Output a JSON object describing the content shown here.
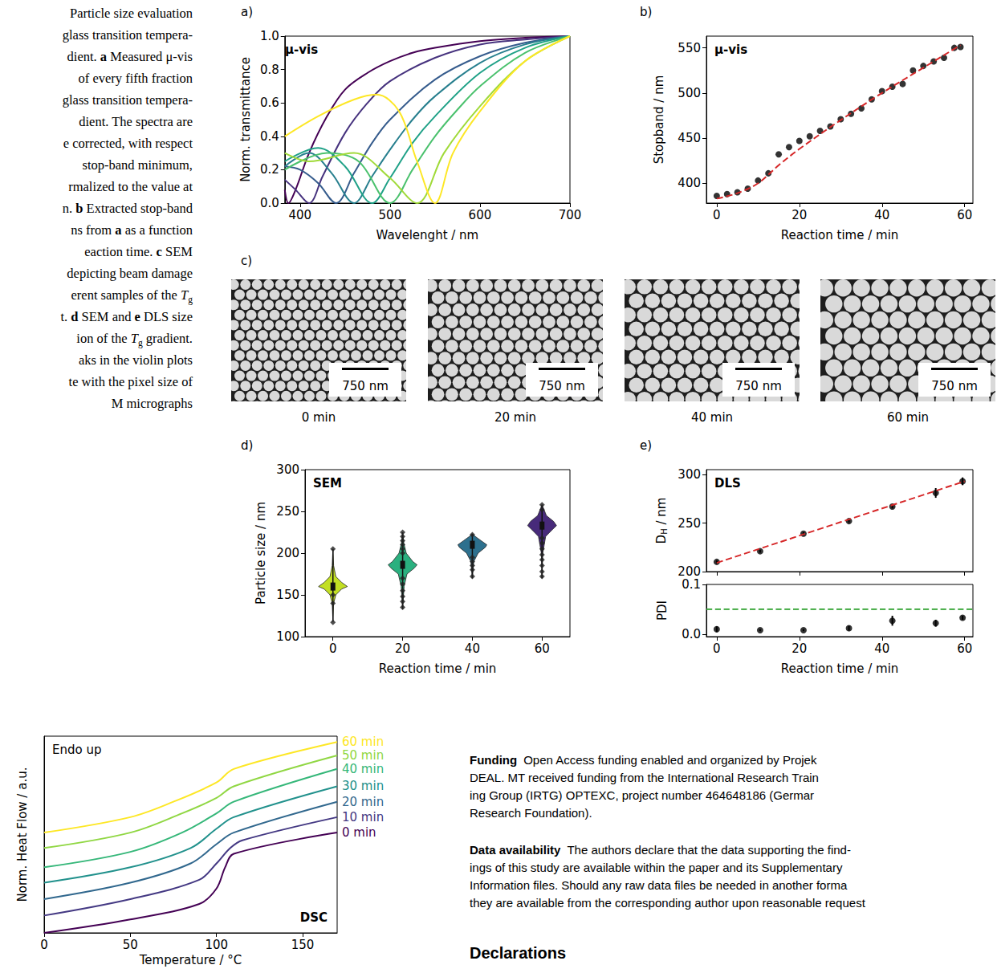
{
  "caption": {
    "lines": [
      [
        "Particle size evaluation"
      ],
      [
        "glass transition tempera-"
      ],
      [
        "dient. ",
        {
          "b": "a"
        },
        " Measured μ-vis"
      ],
      [
        "of every fifth fraction"
      ],
      [
        "glass transition tempera-"
      ],
      [
        "dient. The spectra are"
      ],
      [
        "e corrected, with respect"
      ],
      [
        "stop-band minimum,"
      ],
      [
        "rmalized to the value at"
      ],
      [
        "n. ",
        {
          "b": "b"
        },
        " Extracted stop-band"
      ],
      [
        "ns from ",
        {
          "b": "a"
        },
        " as a function"
      ],
      [
        "eaction time. ",
        {
          "b": "c"
        },
        " SEM"
      ],
      [
        "depicting beam damage"
      ],
      [
        "erent samples of the ",
        {
          "i": "T"
        },
        {
          "sub": "g"
        }
      ],
      [
        "t. ",
        {
          "b": "d"
        },
        " SEM and ",
        {
          "b": "e"
        },
        " DLS size"
      ],
      [
        "ion of the ",
        {
          "i": "T"
        },
        {
          "sub": "g"
        },
        " gradient."
      ],
      [
        "aks in the violin plots"
      ],
      [
        "te with the pixel size of"
      ],
      [
        "M micrographs"
      ]
    ]
  },
  "chart_data": [
    {
      "panel": "a)",
      "type": "line",
      "annotations": [
        "μ-vis"
      ],
      "xlabel": "Wavelenght / nm",
      "ylabel": "Norm. transmittance",
      "xlim": [
        383,
        700
      ],
      "xticks": [
        400,
        500,
        600,
        700
      ],
      "ylim": [
        0,
        1
      ],
      "yticks": [
        {
          "value": 0,
          "label": "0.0"
        },
        {
          "value": 0.2,
          "label": "0.2"
        },
        {
          "value": 0.4,
          "label": "0.4"
        },
        {
          "value": 0.6,
          "label": "0.6"
        },
        {
          "value": 0.8,
          "label": "0.8"
        },
        {
          "value": 1,
          "label": "1.0"
        }
      ],
      "grid": false,
      "series": [
        {
          "color": "#440154",
          "line_style": "solid",
          "x": [
            383,
            387,
            395,
            410,
            430,
            450,
            475,
            500,
            525,
            550,
            600,
            650,
            700
          ],
          "values": [
            0.08,
            0.0,
            0.08,
            0.3,
            0.52,
            0.68,
            0.78,
            0.85,
            0.9,
            0.93,
            0.97,
            0.99,
            1.0
          ]
        },
        {
          "color": "#46327e",
          "line_style": "solid",
          "x": [
            383,
            395,
            410,
            425,
            450,
            475,
            500,
            550,
            600,
            650,
            700
          ],
          "values": [
            0.14,
            0.08,
            0.0,
            0.16,
            0.42,
            0.6,
            0.73,
            0.87,
            0.95,
            0.98,
            1.0
          ]
        },
        {
          "color": "#365c8d",
          "line_style": "solid",
          "x": [
            383,
            400,
            420,
            440,
            460,
            480,
            500,
            550,
            600,
            650,
            700
          ],
          "values": [
            0.22,
            0.2,
            0.12,
            0.0,
            0.18,
            0.36,
            0.5,
            0.74,
            0.88,
            0.96,
            1.0
          ]
        },
        {
          "color": "#277f8e",
          "line_style": "solid",
          "x": [
            383,
            410,
            435,
            460,
            480,
            500,
            525,
            550,
            600,
            650,
            700
          ],
          "values": [
            0.22,
            0.3,
            0.18,
            0.0,
            0.16,
            0.32,
            0.5,
            0.64,
            0.84,
            0.95,
            1.0
          ]
        },
        {
          "color": "#1fa187",
          "line_style": "solid",
          "x": [
            383,
            420,
            450,
            480,
            500,
            525,
            550,
            600,
            650,
            700
          ],
          "values": [
            0.25,
            0.33,
            0.22,
            0.0,
            0.15,
            0.36,
            0.52,
            0.78,
            0.93,
            1.0
          ]
        },
        {
          "color": "#4ac16d",
          "line_style": "solid",
          "x": [
            383,
            430,
            465,
            500,
            525,
            550,
            575,
            600,
            650,
            700
          ],
          "values": [
            0.2,
            0.3,
            0.25,
            0.0,
            0.2,
            0.4,
            0.56,
            0.7,
            0.9,
            1.0
          ]
        },
        {
          "color": "#a0da39",
          "line_style": "solid",
          "x": [
            383,
            410,
            460,
            500,
            530,
            560,
            600,
            650,
            700
          ],
          "values": [
            0.3,
            0.25,
            0.3,
            0.15,
            0.0,
            0.3,
            0.58,
            0.85,
            1.0
          ]
        },
        {
          "color": "#fde725",
          "line_style": "solid",
          "x": [
            383,
            420,
            460,
            485,
            510,
            530,
            550,
            570,
            600,
            650,
            700
          ],
          "values": [
            0.4,
            0.52,
            0.62,
            0.65,
            0.55,
            0.25,
            0.0,
            0.3,
            0.55,
            0.85,
            1.0
          ]
        }
      ]
    },
    {
      "panel": "b)",
      "type": "scatter",
      "annotations": [
        "μ-vis"
      ],
      "xlabel": "Reaction time / min",
      "ylabel": "Stopband / nm",
      "xlim": [
        -2.5,
        62
      ],
      "xticks": [
        0,
        20,
        40,
        60
      ],
      "ylim": [
        378,
        563
      ],
      "yticks": [
        400,
        450,
        500,
        550
      ],
      "grid": false,
      "series": [
        {
          "type": "scatter",
          "marker": "circle",
          "color": "#000000",
          "x": [
            0,
            2.5,
            5,
            7.5,
            10,
            12.5,
            15,
            17.5,
            20,
            22.5,
            25,
            27.5,
            30,
            32.5,
            35,
            37.5,
            40,
            42.5,
            45,
            47.5,
            50,
            52.5,
            55,
            57.5,
            59
          ],
          "values": [
            386,
            388,
            390,
            394,
            403,
            411,
            432,
            440,
            447,
            452,
            458,
            463,
            471,
            477,
            483,
            493,
            502,
            507,
            510,
            525,
            530,
            535,
            539,
            550,
            551
          ]
        },
        {
          "type": "line",
          "line_style": "dashed",
          "color": "#d62728",
          "x": [
            0,
            5,
            10,
            15,
            20,
            30,
            40,
            50,
            59
          ],
          "values": [
            383,
            389,
            400,
            420,
            438,
            470,
            500,
            528,
            553
          ]
        }
      ]
    },
    {
      "panel": "d)",
      "type": "violin",
      "annotations": [
        "SEM"
      ],
      "xlabel": "Reaction time / min",
      "ylabel": "Particle size / nm",
      "xlim": [
        -8,
        68
      ],
      "xticks": [
        0,
        20,
        40,
        60
      ],
      "ylim": [
        100,
        300
      ],
      "yticks": [
        100,
        150,
        200,
        250,
        300
      ],
      "grid": false,
      "marker": "diamond",
      "violins": [
        {
          "x": 0,
          "color": "#c2df23",
          "median": 160,
          "sizes": [
            118,
            140,
            150,
            157,
            160,
            165,
            172,
            185,
            205
          ],
          "widths": [
            0,
            0.05,
            0.2,
            0.6,
            1.0,
            0.6,
            0.2,
            0.05,
            0
          ],
          "outliers": [
            205,
            117,
            140,
            150
          ]
        },
        {
          "x": 20,
          "color": "#2ab07f",
          "median": 186,
          "sizes": [
            133,
            160,
            175,
            182,
            186,
            190,
            200,
            212,
            225
          ],
          "widths": [
            0,
            0.1,
            0.3,
            0.8,
            1.0,
            0.7,
            0.25,
            0.08,
            0
          ],
          "outliers": [
            225,
            220,
            215,
            210,
            205,
            200,
            170,
            163,
            155,
            148,
            142,
            135
          ]
        },
        {
          "x": 40,
          "color": "#2d708e",
          "median": 210,
          "sizes": [
            170,
            190,
            200,
            207,
            210,
            215,
            220,
            223
          ],
          "widths": [
            0,
            0.1,
            0.4,
            0.9,
            1.0,
            0.6,
            0.2,
            0
          ],
          "outliers": [
            222,
            195,
            190,
            185,
            180,
            172
          ]
        },
        {
          "x": 60,
          "color": "#472a7a",
          "median": 233,
          "sizes": [
            170,
            200,
            220,
            228,
            233,
            238,
            245,
            258
          ],
          "widths": [
            0,
            0.05,
            0.25,
            0.7,
            1.0,
            0.8,
            0.3,
            0
          ],
          "outliers": [
            258,
            252,
            218,
            212,
            205,
            198,
            192,
            185,
            178,
            172
          ]
        }
      ]
    },
    {
      "panel": "e)",
      "type": "scatter",
      "annotations": [
        "DLS"
      ],
      "ylabel": {
        "main": "D",
        "sub": "H",
        "rest": " / nm"
      },
      "xlim": [
        -2.5,
        62
      ],
      "xticks": [
        0,
        20,
        40,
        60
      ],
      "ylim": [
        200,
        305
      ],
      "yticks": [
        200,
        250,
        300
      ],
      "tick_labels": "y",
      "grid": false,
      "series": [
        {
          "type": "scatter",
          "marker": "circle",
          "color": "#000000",
          "x": [
            0,
            10.5,
            21,
            32,
            42.5,
            53,
            59.5
          ],
          "values": [
            210,
            221,
            239,
            252,
            267,
            281,
            293
          ],
          "error": [
            1.5,
            1.5,
            1.5,
            1.5,
            2,
            5,
            4
          ]
        },
        {
          "type": "line",
          "line_style": "dashed",
          "color": "#d62728",
          "x": [
            0,
            60
          ],
          "values": [
            209,
            293
          ]
        }
      ]
    },
    {
      "type": "scatter",
      "xlabel": "Reaction time / min",
      "ylabel": "PDI",
      "xlim": [
        -2.5,
        62
      ],
      "xticks": [
        0,
        20,
        40,
        60
      ],
      "ylim": [
        -0.005,
        0.1
      ],
      "yticks": [
        {
          "value": 0,
          "label": "0.0"
        },
        {
          "value": 0.1,
          "label": "0.1"
        }
      ],
      "grid": false,
      "series": [
        {
          "type": "scatter",
          "marker": "circle",
          "color": "#000000",
          "x": [
            0,
            10.5,
            21,
            32,
            42.5,
            53,
            59.5
          ],
          "values": [
            0.01,
            0.008,
            0.008,
            0.012,
            0.027,
            0.022,
            0.033
          ],
          "error": [
            0.006,
            0.002,
            0.002,
            0.005,
            0.01,
            0.007,
            0.004
          ]
        },
        {
          "type": "hline",
          "line_style": "dashed",
          "color": "#2ca02c",
          "y": 0.05
        }
      ]
    },
    {
      "type": "line",
      "annotations": [
        "Endo up",
        "DSC"
      ],
      "xlabel": "Temperature / °C",
      "ylabel": "Norm. Heat Flow / a.u.",
      "xlim": [
        0,
        170
      ],
      "xticks": [
        0,
        50,
        100,
        150
      ],
      "ylim": [
        0,
        10.2
      ],
      "yticks": [],
      "tick_labels": "x",
      "grid": false,
      "series": [
        {
          "name": "0 min",
          "color": "#440154",
          "line_style": "solid",
          "x": [
            0,
            50,
            90,
            100,
            105,
            110,
            170
          ],
          "values": [
            0,
            0.7,
            1.5,
            2.3,
            3.4,
            4.1,
            5.2
          ]
        },
        {
          "name": "10 min",
          "color": "#443983",
          "line_style": "solid",
          "x": [
            0,
            50,
            90,
            100,
            108,
            115,
            170
          ],
          "values": [
            0.9,
            1.75,
            2.75,
            3.6,
            4.4,
            4.8,
            6.0
          ]
        },
        {
          "name": "20 min",
          "color": "#31688e",
          "line_style": "solid",
          "x": [
            0,
            50,
            85,
            100,
            110,
            170
          ],
          "values": [
            1.75,
            2.6,
            3.6,
            4.6,
            5.2,
            6.8
          ]
        },
        {
          "name": "30 min",
          "color": "#21918c",
          "line_style": "solid",
          "x": [
            0,
            50,
            85,
            100,
            110,
            170
          ],
          "values": [
            2.6,
            3.4,
            4.4,
            5.4,
            6.0,
            7.6
          ]
        },
        {
          "name": "40 min",
          "color": "#35b779",
          "line_style": "solid",
          "x": [
            0,
            50,
            80,
            100,
            110,
            170
          ],
          "values": [
            3.4,
            4.2,
            5.2,
            6.2,
            6.8,
            8.5
          ]
        },
        {
          "name": "50 min",
          "color": "#90d743",
          "line_style": "solid",
          "x": [
            0,
            50,
            80,
            100,
            110,
            170
          ],
          "values": [
            4.4,
            5.2,
            6.2,
            7.0,
            7.6,
            9.2
          ]
        },
        {
          "name": "60 min",
          "color": "#fde725",
          "line_style": "solid",
          "x": [
            0,
            50,
            75,
            100,
            110,
            170
          ],
          "values": [
            5.2,
            6.0,
            6.8,
            7.8,
            8.5,
            9.9
          ]
        }
      ]
    }
  ],
  "micrographs": {
    "panel": "c)",
    "images": [
      {
        "label": "0 min",
        "scale_bar": "750 nm"
      },
      {
        "label": "20 min",
        "scale_bar": "750 nm"
      },
      {
        "label": "40 min",
        "scale_bar": "750 nm"
      },
      {
        "label": "60 min",
        "scale_bar": "750 nm"
      }
    ]
  },
  "body": {
    "paragraphs": [
      {
        "head": "Funding",
        "lines": [
          "Open Access funding enabled and organized by Projek",
          "DEAL. MT received funding from the International Research Train",
          "ing Group (IRTG) OPTEXC, project number 464648186 (Germar",
          "Research Foundation)."
        ]
      },
      {
        "head": "Data availability",
        "lines": [
          "The authors declare that the data supporting the find-",
          "ings of this study are available within the paper and its Supplementary",
          "Information files. Should any raw data files be needed in another forma",
          "they are available from the corresponding author upon reasonable request"
        ]
      }
    ],
    "section": "Declarations"
  }
}
